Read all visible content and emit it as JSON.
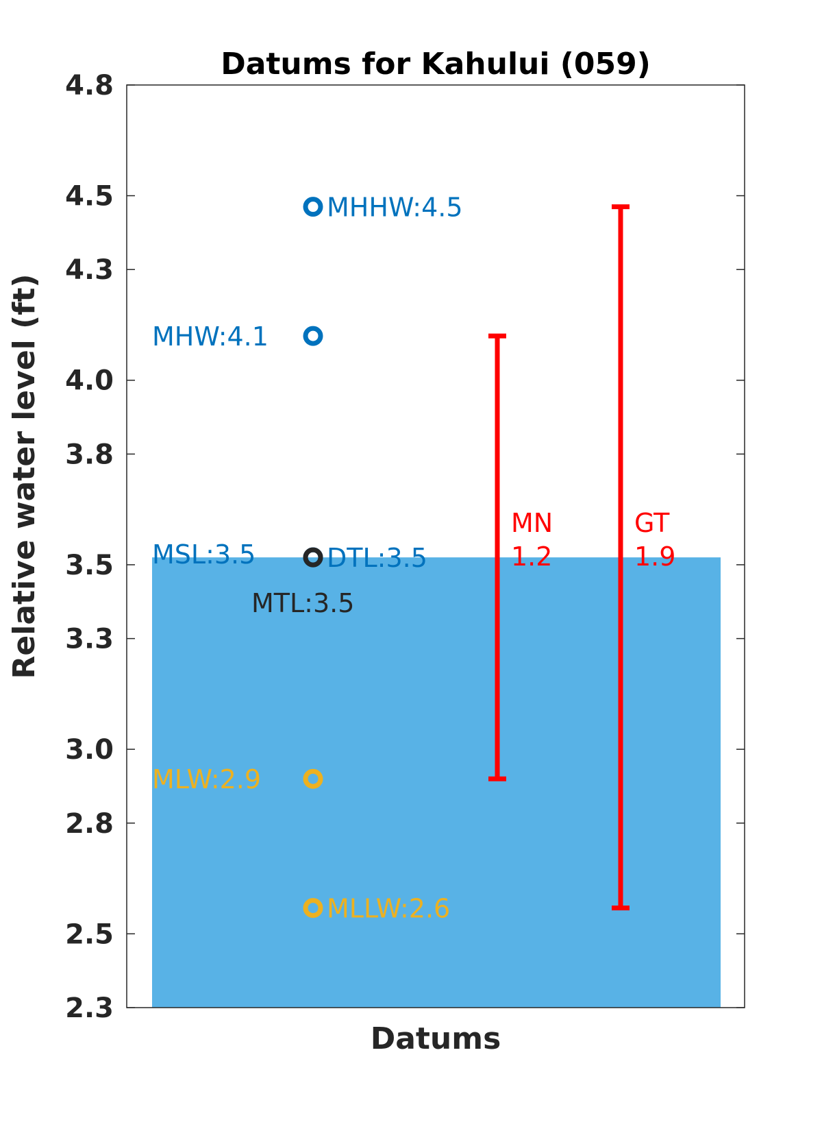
{
  "chart_data": {
    "type": "bar",
    "title": "Datums for Kahului (059)",
    "xlabel": "Datums",
    "ylabel": "Relative water level (ft)",
    "ylim": [
      2.3,
      4.8
    ],
    "yticks": [
      2.3,
      2.5,
      2.8,
      3.0,
      3.3,
      3.5,
      3.8,
      4.0,
      4.3,
      4.5,
      4.8
    ],
    "ytick_labels": [
      "2.3",
      "2.5",
      "2.8",
      "3.0",
      "3.3",
      "3.5",
      "3.8",
      "4.0",
      "4.3",
      "4.5",
      "4.8"
    ],
    "grid": false,
    "bar": {
      "name": "MSL",
      "value": 3.52,
      "color": "#58b2e6"
    },
    "points": [
      {
        "name": "MHHW",
        "value": 4.47,
        "label": "MHHW:4.5",
        "color": "#0072bd",
        "label_side": "right"
      },
      {
        "name": "MHW",
        "value": 4.12,
        "label": "MHW:4.1",
        "color": "#0072bd",
        "label_side": "left"
      },
      {
        "name": "MSL",
        "value": 3.52,
        "label": "MSL:3.5",
        "color": "#0072bd",
        "label_side": "left"
      },
      {
        "name": "DTL",
        "value": 3.52,
        "label": "DTL:3.5",
        "color": "#0072bd",
        "label_side": "right"
      },
      {
        "name": "MTL",
        "value": 3.52,
        "label": "MTL:3.5",
        "color": "#262626",
        "label_side": "below"
      },
      {
        "name": "MLW",
        "value": 2.92,
        "label": "MLW:2.9",
        "color": "#edb120",
        "label_side": "left"
      },
      {
        "name": "MLLW",
        "value": 2.57,
        "label": "MLLW:2.6",
        "color": "#edb120",
        "label_side": "right"
      }
    ],
    "ranges": [
      {
        "name": "MN",
        "label": "MN",
        "value_label": "1.2",
        "low": 2.92,
        "high": 4.12,
        "color": "#ff0000"
      },
      {
        "name": "GT",
        "label": "GT",
        "value_label": "1.9",
        "low": 2.57,
        "high": 4.47,
        "color": "#ff0000"
      }
    ]
  }
}
